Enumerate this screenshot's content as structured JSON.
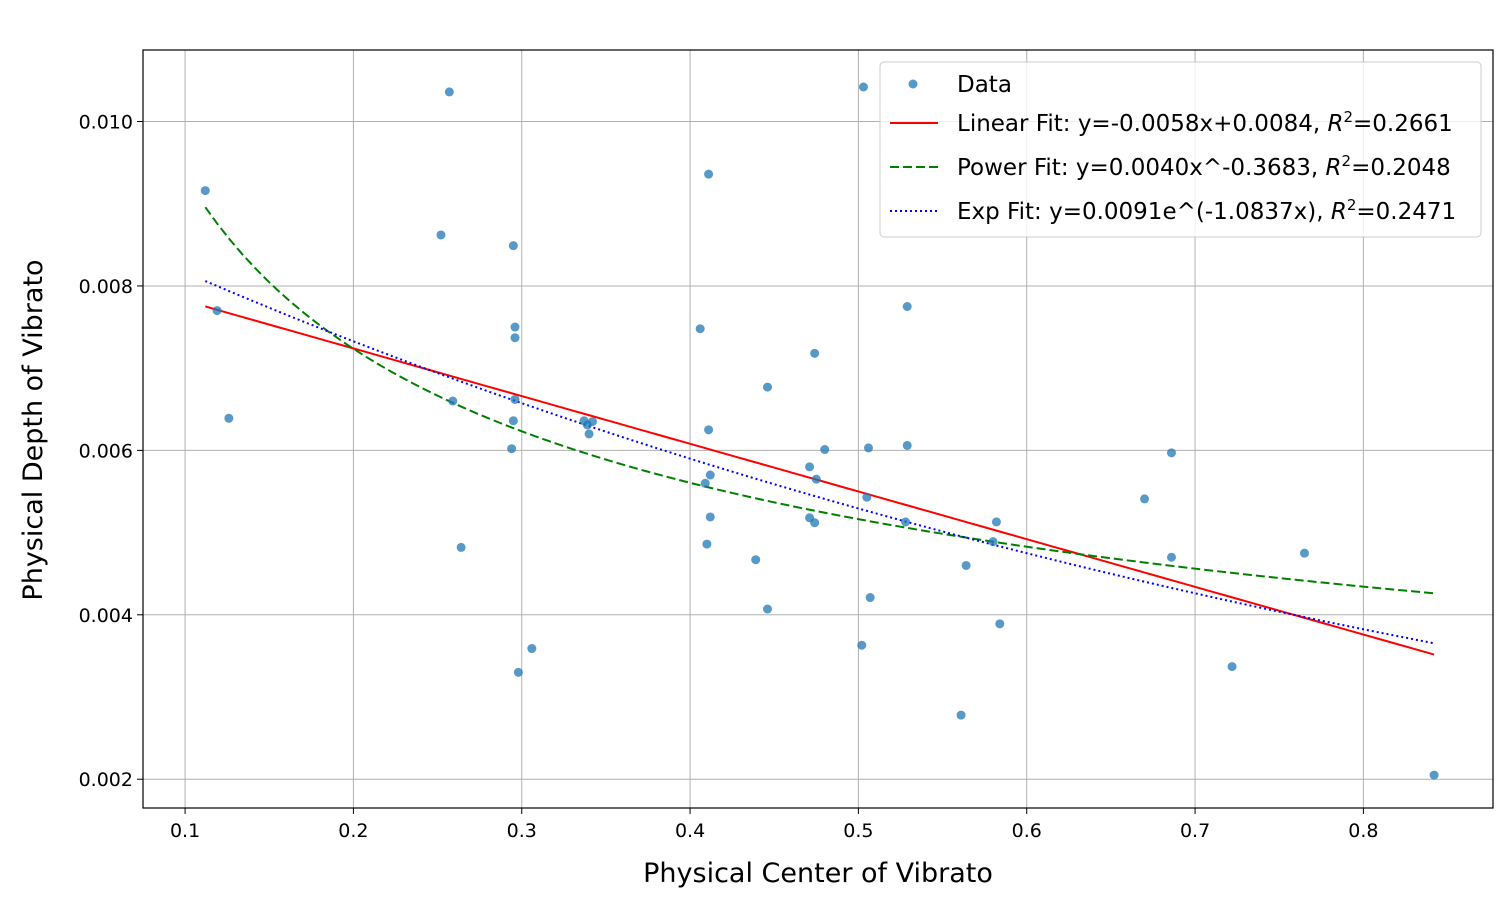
{
  "chart_data": {
    "type": "scatter",
    "xlabel": "Physical Center of Vibrato",
    "ylabel": "Physical Depth of Vibrato",
    "xlim": [
      0.075,
      0.877
    ],
    "ylim": [
      0.00165,
      0.01087
    ],
    "xticks": [
      0.1,
      0.2,
      0.3,
      0.4,
      0.5,
      0.6,
      0.7,
      0.8
    ],
    "xtick_labels": [
      "0.1",
      "0.2",
      "0.3",
      "0.4",
      "0.5",
      "0.6",
      "0.7",
      "0.8"
    ],
    "yticks": [
      0.002,
      0.004,
      0.006,
      0.008,
      0.01
    ],
    "ytick_labels": [
      "0.002",
      "0.004",
      "0.006",
      "0.008",
      "0.010"
    ],
    "grid": true,
    "legend_position": "top-right",
    "series": [
      {
        "name": "Data",
        "kind": "scatter",
        "color": "#1f77b4",
        "points": [
          [
            0.112,
            0.00916
          ],
          [
            0.119,
            0.0077
          ],
          [
            0.126,
            0.00639
          ],
          [
            0.252,
            0.00862
          ],
          [
            0.257,
            0.01036
          ],
          [
            0.259,
            0.0066
          ],
          [
            0.264,
            0.00482
          ],
          [
            0.294,
            0.00602
          ],
          [
            0.295,
            0.00849
          ],
          [
            0.295,
            0.00636
          ],
          [
            0.296,
            0.00737
          ],
          [
            0.296,
            0.0075
          ],
          [
            0.296,
            0.00662
          ],
          [
            0.298,
            0.0033
          ],
          [
            0.306,
            0.00359
          ],
          [
            0.337,
            0.00636
          ],
          [
            0.339,
            0.00631
          ],
          [
            0.34,
            0.0062
          ],
          [
            0.342,
            0.00635
          ],
          [
            0.406,
            0.00748
          ],
          [
            0.409,
            0.0056
          ],
          [
            0.41,
            0.00486
          ],
          [
            0.411,
            0.00625
          ],
          [
            0.411,
            0.00936
          ],
          [
            0.412,
            0.0057
          ],
          [
            0.412,
            0.00519
          ],
          [
            0.439,
            0.00467
          ],
          [
            0.446,
            0.00677
          ],
          [
            0.446,
            0.00407
          ],
          [
            0.471,
            0.0058
          ],
          [
            0.471,
            0.00518
          ],
          [
            0.474,
            0.00512
          ],
          [
            0.474,
            0.00718
          ],
          [
            0.475,
            0.00565
          ],
          [
            0.48,
            0.00601
          ],
          [
            0.502,
            0.00363
          ],
          [
            0.503,
            0.01042
          ],
          [
            0.505,
            0.00543
          ],
          [
            0.506,
            0.00603
          ],
          [
            0.507,
            0.00421
          ],
          [
            0.528,
            0.00513
          ],
          [
            0.529,
            0.00606
          ],
          [
            0.529,
            0.00775
          ],
          [
            0.561,
            0.00278
          ],
          [
            0.564,
            0.0046
          ],
          [
            0.58,
            0.00489
          ],
          [
            0.582,
            0.00513
          ],
          [
            0.584,
            0.00389
          ],
          [
            0.67,
            0.00541
          ],
          [
            0.686,
            0.00597
          ],
          [
            0.686,
            0.0047
          ],
          [
            0.722,
            0.00337
          ],
          [
            0.765,
            0.00475
          ],
          [
            0.842,
            0.00205
          ]
        ]
      },
      {
        "name": "Linear Fit: y=-0.0058x+0.0084, R²=0.2661",
        "kind": "line",
        "style": "solid",
        "color": "#ff0000",
        "model": "linear",
        "params": {
          "a": -0.0058,
          "b": 0.0084
        },
        "x_range": [
          0.112,
          0.842
        ]
      },
      {
        "name": "Power Fit: y=0.0040x^-0.3683, R²=0.2048",
        "kind": "line",
        "style": "dashed",
        "color": "#008000",
        "model": "power",
        "params": {
          "a": 0.004,
          "b": -0.3683
        },
        "x_range": [
          0.112,
          0.842
        ]
      },
      {
        "name": "Exp Fit: y=0.0091e^(-1.0837x), R²=0.2471",
        "kind": "line",
        "style": "dotted",
        "color": "#0000ff",
        "model": "exponential",
        "params": {
          "a": 0.0091,
          "b": -1.0837
        },
        "x_range": [
          0.112,
          0.842
        ]
      }
    ],
    "legend": [
      {
        "marker": "dot",
        "color": "#1f77b4",
        "label": "Data"
      },
      {
        "marker": "solid",
        "color": "#ff0000",
        "prefix": "Linear Fit: y=-0.0058x+0.0084, ",
        "r2": "=0.2661"
      },
      {
        "marker": "dashed",
        "color": "#008000",
        "prefix": "Power Fit: y=0.0040x^-0.3683, ",
        "r2": "=0.2048"
      },
      {
        "marker": "dotted",
        "color": "#0000ff",
        "prefix": "Exp Fit: y=0.0091e^(-1.0837x), ",
        "r2": "=0.2471"
      }
    ]
  }
}
